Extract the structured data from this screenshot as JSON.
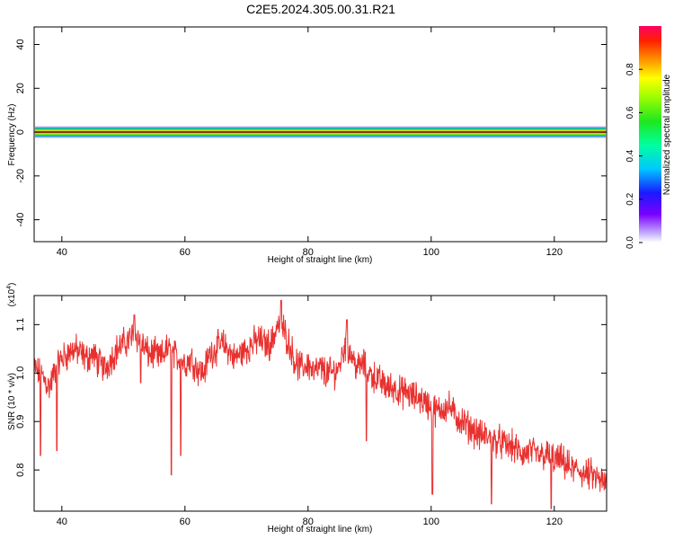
{
  "title": "C2E5.2024.305.00.31.R21",
  "chart_data": [
    {
      "type": "heatmap",
      "xlabel": "Height of straight line (km)",
      "ylabel": "Frequency (Hz)",
      "xlim": [
        35.5,
        128.5
      ],
      "ylim": [
        -50,
        48
      ],
      "xticks": [
        "40",
        "60",
        "80",
        "100",
        "120"
      ],
      "yticks": [
        "-40",
        "-20",
        "0",
        "20",
        "40"
      ],
      "band": {
        "frequency_hz": 0,
        "half_width_hz": 1.5
      },
      "colorbar": {
        "label": "Normalized spectral amplitude",
        "ticks": [
          "0.0",
          "0.2",
          "0.4",
          "0.6",
          "0.8"
        ],
        "range": [
          0,
          1
        ]
      }
    },
    {
      "type": "line",
      "xlabel": "Height of straight line (km)",
      "ylabel": "SNR (10 * v/v)",
      "multiplier_base": "(x10",
      "multiplier_exp": "4",
      "multiplier_close": ")",
      "xlim": [
        35.5,
        128.5
      ],
      "ylim": [
        0.715,
        1.16
      ],
      "xticks": [
        "40",
        "60",
        "80",
        "100",
        "120"
      ],
      "yticks": [
        "0.8",
        "0.9",
        "1.0",
        "1.1"
      ],
      "color": "#e8312f",
      "series": [
        {
          "x": [
            35.5,
            37,
            38,
            39,
            40,
            41,
            42,
            43,
            44,
            45,
            46,
            47,
            48,
            49,
            50,
            51,
            52,
            53,
            54,
            55,
            56,
            57,
            58,
            59,
            60,
            61,
            62,
            63,
            64,
            65,
            66,
            67,
            68,
            69,
            70,
            71,
            72,
            73,
            74,
            75,
            76,
            77,
            78,
            79,
            80,
            81,
            82,
            83,
            84,
            85,
            86,
            87,
            88,
            89,
            90,
            91,
            92,
            93,
            94,
            95,
            96,
            97,
            98,
            99,
            100,
            101,
            102,
            103,
            104,
            105,
            106,
            107,
            108,
            109,
            110,
            111,
            112,
            113,
            114,
            115,
            116,
            117,
            118,
            119,
            120,
            121,
            122,
            123,
            124,
            125,
            126,
            127,
            128.5
          ],
          "y": [
            1.01,
            0.99,
            0.97,
            1.01,
            1.03,
            1.04,
            1.05,
            1.04,
            1.03,
            1.04,
            1.02,
            1.01,
            1.03,
            1.05,
            1.06,
            1.07,
            1.08,
            1.06,
            1.04,
            1.04,
            1.03,
            1.05,
            1.04,
            1.03,
            1.02,
            1.03,
            1.01,
            1.0,
            1.04,
            1.05,
            1.06,
            1.05,
            1.03,
            1.04,
            1.05,
            1.06,
            1.07,
            1.06,
            1.06,
            1.1,
            1.09,
            1.06,
            1.02,
            1.01,
            1.02,
            1.0,
            1.01,
            1.0,
            1.0,
            1.01,
            1.06,
            1.04,
            1.01,
            1.02,
            1.0,
            0.99,
            0.98,
            0.97,
            0.97,
            0.96,
            0.96,
            0.95,
            0.95,
            0.94,
            0.93,
            0.92,
            0.93,
            0.93,
            0.91,
            0.9,
            0.89,
            0.88,
            0.87,
            0.87,
            0.86,
            0.86,
            0.85,
            0.85,
            0.84,
            0.83,
            0.84,
            0.83,
            0.83,
            0.83,
            0.82,
            0.82,
            0.81,
            0.8,
            0.8,
            0.79,
            0.79,
            0.78,
            0.77
          ]
        }
      ],
      "dips": [
        {
          "x": 36.5,
          "y": 0.83
        },
        {
          "x": 39.2,
          "y": 0.84
        },
        {
          "x": 52.8,
          "y": 0.98
        },
        {
          "x": 57.8,
          "y": 0.79
        },
        {
          "x": 59.3,
          "y": 0.83
        },
        {
          "x": 89.5,
          "y": 0.86
        },
        {
          "x": 100.2,
          "y": 0.75
        },
        {
          "x": 109.8,
          "y": 0.73
        },
        {
          "x": 119.5,
          "y": 0.72
        }
      ],
      "peaks": [
        {
          "x": 75.6,
          "y": 1.15
        },
        {
          "x": 86.3,
          "y": 1.11
        },
        {
          "x": 51.8,
          "y": 1.12
        }
      ]
    }
  ]
}
